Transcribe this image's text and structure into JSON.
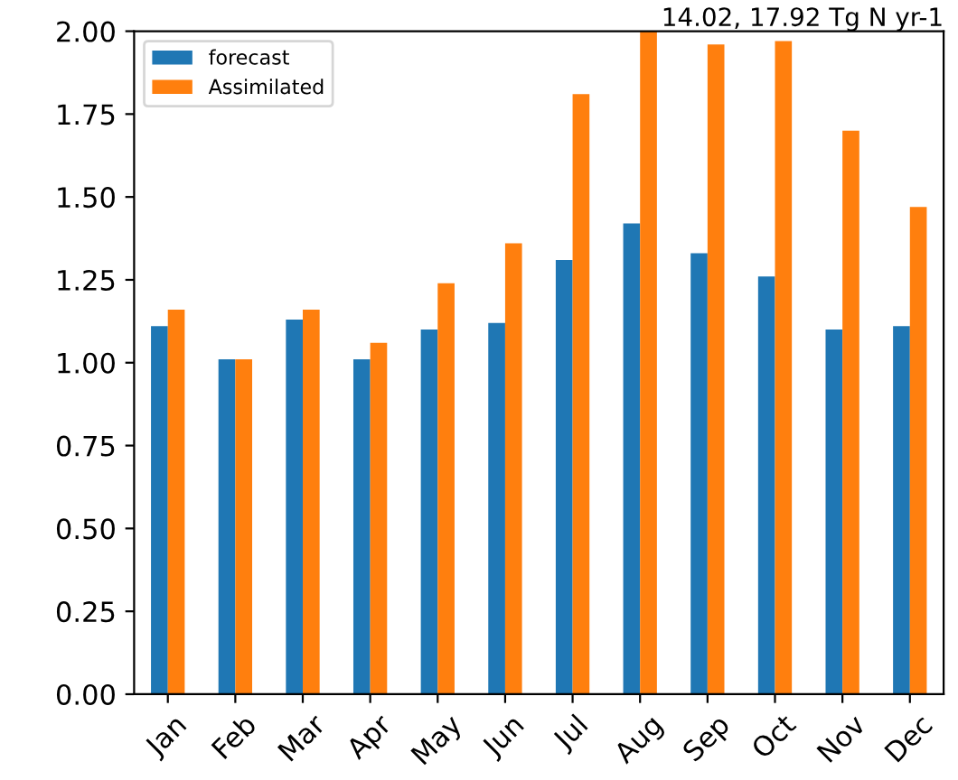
{
  "chart_data": {
    "type": "bar",
    "title": "14.02, 17.92 Tg N yr-1",
    "categories": [
      "Jan",
      "Feb",
      "Mar",
      "Apr",
      "May",
      "Jun",
      "Jul",
      "Aug",
      "Sep",
      "Oct",
      "Nov",
      "Dec"
    ],
    "series": [
      {
        "name": "forecast",
        "color": "#1f77b4",
        "values": [
          1.11,
          1.01,
          1.13,
          1.01,
          1.1,
          1.12,
          1.31,
          1.42,
          1.33,
          1.26,
          1.1,
          1.11
        ]
      },
      {
        "name": "Assimilated",
        "color": "#ff7f0e",
        "values": [
          1.16,
          1.01,
          1.16,
          1.06,
          1.24,
          1.36,
          1.81,
          2.0,
          1.96,
          1.97,
          1.7,
          1.47
        ]
      }
    ],
    "ylim": [
      0,
      2.0
    ],
    "yticks": [
      {
        "value": 0,
        "label": "0.00"
      },
      {
        "value": 0.25,
        "label": "0.25"
      },
      {
        "value": 0.5,
        "label": "0.50"
      },
      {
        "value": 0.75,
        "label": "0.75"
      },
      {
        "value": 1.0,
        "label": "1.00"
      },
      {
        "value": 1.25,
        "label": "1.25"
      },
      {
        "value": 1.5,
        "label": "1.50"
      },
      {
        "value": 1.75,
        "label": "1.75"
      },
      {
        "value": 2.0,
        "label": "2.00"
      }
    ],
    "legend": "top left",
    "grid": false
  }
}
